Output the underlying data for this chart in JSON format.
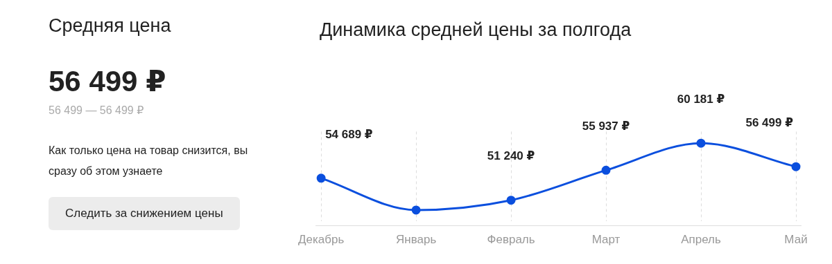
{
  "chart_data": [
    {
      "type": "other",
      "title": "Средняя цена",
      "annotations": [
        "56 499 ₽",
        "56 499 — 56 499 ₽",
        "Как только цена на товар снизится, вы сразу об этом узнаете",
        "Следить за снижением цены"
      ]
    },
    {
      "type": "line",
      "title": "Динамика средней цены за полгода",
      "categories": [
        "Декабрь",
        "Январь",
        "Февраль",
        "Март",
        "Апрель",
        "Май"
      ],
      "series": [
        {
          "color": "#0b4fde",
          "values": [
            54689,
            49700,
            51240,
            55937,
            60181,
            56499
          ],
          "value_labels": [
            "54 689 ₽",
            null,
            "51 240 ₽",
            "55 937 ₽",
            "60 181 ₽",
            "56 499 ₽"
          ]
        }
      ],
      "grid": "x",
      "legend": false,
      "marker": "circle",
      "line_style": "solid",
      "tick_labels": "x"
    }
  ]
}
